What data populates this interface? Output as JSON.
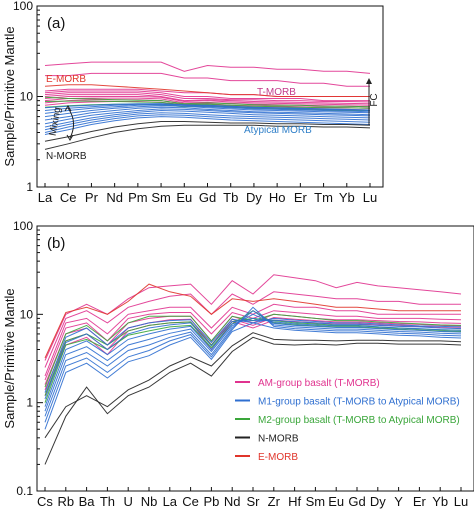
{
  "colors": {
    "am": "#e0338f",
    "m1": "#2f6fd0",
    "m2": "#3aa63a",
    "nmorb": "#222222",
    "emorb": "#e0352b",
    "tmorb_label": "#c23a8a",
    "atypical_label": "#2f7fc8"
  },
  "chart_data": [
    {
      "type": "line",
      "panel_label": "(a)",
      "ylabel": "Sample/Primitive Mantle",
      "yscale": "log",
      "ylim": [
        1,
        100
      ],
      "yticks": [
        "1",
        "10",
        "100"
      ],
      "categories": [
        "La",
        "Ce",
        "Pr",
        "Nd",
        "Pm",
        "Sm",
        "Eu",
        "Gd",
        "Tb",
        "Dy",
        "Ho",
        "Er",
        "Tm",
        "Yb",
        "Lu"
      ],
      "annotations": [
        {
          "text": "E-MORB",
          "color": "#e0352b"
        },
        {
          "text": "T-MORB",
          "color": "#c23a8a"
        },
        {
          "text": "Mixing",
          "color": "#222222"
        },
        {
          "text": "N-MORB",
          "color": "#222222"
        },
        {
          "text": "Atypical MORB",
          "color": "#2f7fc8"
        },
        {
          "text": "FC",
          "color": "#222222"
        }
      ],
      "series": [
        {
          "group": "am",
          "values": [
            22,
            23,
            24,
            24,
            24,
            24,
            19,
            22,
            21,
            21,
            20,
            20,
            19,
            19,
            18
          ]
        },
        {
          "group": "am",
          "values": [
            17,
            17,
            18,
            18,
            18,
            18,
            16,
            16,
            15,
            15,
            15,
            14,
            14,
            13,
            13
          ]
        },
        {
          "group": "am",
          "values": [
            11.5,
            12,
            12,
            12,
            12,
            11.5,
            11,
            11,
            10.5,
            10.5,
            10,
            10,
            10,
            10,
            10
          ]
        },
        {
          "group": "am",
          "values": [
            11,
            11.5,
            11.5,
            11.5,
            11.5,
            11,
            10,
            10,
            9.5,
            9.5,
            9.5,
            9.5,
            9,
            9,
            9
          ]
        },
        {
          "group": "am",
          "values": [
            10.5,
            11,
            11,
            11,
            11,
            10.5,
            9.5,
            9.5,
            9.2,
            9.2,
            9,
            9,
            8.8,
            8.8,
            8.7
          ]
        },
        {
          "group": "am",
          "values": [
            10,
            10.5,
            10.5,
            10.5,
            10.5,
            10,
            9,
            9.2,
            9,
            8.8,
            8.7,
            8.6,
            8.5,
            8.4,
            8.3
          ]
        },
        {
          "group": "am",
          "values": [
            9.5,
            10,
            10,
            10,
            10,
            9.8,
            8.8,
            9,
            8.7,
            8.5,
            8.4,
            8.3,
            8.2,
            8.1,
            8
          ]
        },
        {
          "group": "am",
          "values": [
            9,
            9.5,
            9.6,
            9.6,
            9.6,
            9.4,
            8.5,
            8.6,
            8.4,
            8.2,
            8.1,
            8,
            7.9,
            7.8,
            7.7
          ]
        },
        {
          "group": "am",
          "values": [
            8.5,
            9,
            9.2,
            9.2,
            9.2,
            9,
            8.2,
            8.3,
            8,
            7.9,
            7.8,
            7.7,
            7.6,
            7.5,
            7.4
          ]
        },
        {
          "group": "am",
          "values": [
            8,
            8.5,
            8.7,
            8.8,
            8.8,
            8.6,
            8,
            8,
            7.8,
            7.6,
            7.5,
            7.4,
            7.3,
            7.2,
            7.1
          ]
        },
        {
          "group": "emorb",
          "values": [
            13,
            13.5,
            13.5,
            13,
            12.5,
            12,
            11.5,
            11,
            10.5,
            10.5,
            10,
            10,
            10,
            10,
            10
          ]
        },
        {
          "group": "m2",
          "values": [
            9.8,
            9.5,
            9.4,
            9.2,
            9.1,
            9,
            8.3,
            8.5,
            8.3,
            8.1,
            8,
            8,
            7.8,
            7.8,
            7.7
          ]
        },
        {
          "group": "m2",
          "values": [
            8.8,
            8.9,
            8.9,
            8.8,
            8.7,
            8.6,
            8.1,
            8.2,
            8,
            7.8,
            7.7,
            7.6,
            7.5,
            7.5,
            7.4
          ]
        },
        {
          "group": "m2",
          "values": [
            7.6,
            7.9,
            8.1,
            8.2,
            8.2,
            8.1,
            7.7,
            7.8,
            7.6,
            7.4,
            7.3,
            7.2,
            7.1,
            7,
            7
          ]
        },
        {
          "group": "m1",
          "values": [
            7.5,
            7.8,
            8,
            8.2,
            8.3,
            8.3,
            8,
            8,
            7.8,
            7.6,
            7.5,
            7.4,
            7.3,
            7.2,
            7.1
          ]
        },
        {
          "group": "m1",
          "values": [
            7,
            7.4,
            7.7,
            8,
            8.2,
            8.3,
            8.1,
            7.9,
            7.7,
            7.5,
            7.4,
            7.3,
            7.2,
            7.1,
            7
          ]
        },
        {
          "group": "m1",
          "values": [
            6.5,
            7,
            7.4,
            7.7,
            8,
            8.1,
            8,
            7.7,
            7.5,
            7.3,
            7.2,
            7.1,
            7,
            6.9,
            6.8
          ]
        },
        {
          "group": "m1",
          "values": [
            6,
            6.5,
            7,
            7.4,
            7.7,
            7.9,
            7.8,
            7.5,
            7.3,
            7.1,
            7,
            6.9,
            6.8,
            6.7,
            6.6
          ]
        },
        {
          "group": "m1",
          "values": [
            5.5,
            6,
            6.6,
            7,
            7.4,
            7.6,
            7.5,
            7.2,
            7,
            6.8,
            6.7,
            6.6,
            6.5,
            6.4,
            6.3
          ]
        },
        {
          "group": "m1",
          "values": [
            5,
            5.6,
            6.2,
            6.6,
            7,
            7.3,
            7.2,
            7,
            6.8,
            6.6,
            6.5,
            6.4,
            6.3,
            6.2,
            6.1
          ]
        },
        {
          "group": "m1",
          "values": [
            4.6,
            5.2,
            5.8,
            6.3,
            6.7,
            7,
            6.9,
            6.7,
            6.5,
            6.3,
            6.2,
            6.1,
            6,
            5.9,
            5.8
          ]
        },
        {
          "group": "m1",
          "values": [
            4.3,
            4.9,
            5.5,
            6,
            6.4,
            6.6,
            6.5,
            6.3,
            6.1,
            6,
            5.9,
            5.8,
            5.7,
            5.6,
            5.5
          ]
        },
        {
          "group": "m1",
          "values": [
            4,
            4.6,
            5.2,
            5.7,
            6.1,
            6.3,
            6.2,
            6,
            5.8,
            5.7,
            5.6,
            5.5,
            5.4,
            5.3,
            5.2
          ]
        },
        {
          "group": "m1",
          "values": [
            3.8,
            4.3,
            4.9,
            5.4,
            5.8,
            6,
            5.9,
            5.7,
            5.5,
            5.4,
            5.3,
            5.2,
            5.1,
            5,
            4.9
          ]
        },
        {
          "group": "nmorb",
          "values": [
            3.2,
            3.6,
            4.1,
            4.6,
            5,
            5.3,
            5.3,
            5.2,
            5.1,
            5.1,
            5,
            5,
            4.9,
            4.9,
            4.8
          ]
        },
        {
          "group": "nmorb",
          "values": [
            2.6,
            3,
            3.5,
            4,
            4.4,
            4.7,
            4.8,
            4.8,
            4.8,
            4.8,
            4.7,
            4.7,
            4.6,
            4.6,
            4.5
          ]
        }
      ]
    },
    {
      "type": "line",
      "panel_label": "(b)",
      "ylabel": "Sample/Primitive Mantle",
      "yscale": "log",
      "ylim": [
        0.1,
        100
      ],
      "yticks": [
        "0.1",
        "1",
        "10",
        "100"
      ],
      "categories": [
        "Cs",
        "Rb",
        "Ba",
        "Th",
        "U",
        "Nb",
        "La",
        "Ce",
        "Pb",
        "Nd",
        "Sr",
        "Zr",
        "Hf",
        "Sm",
        "Eu",
        "Gd",
        "Dy",
        "Y",
        "Er",
        "Yb",
        "Lu"
      ],
      "legend": [
        {
          "label": "AM-group basalt (T-MORB)",
          "group": "am"
        },
        {
          "label": "M1-group basalt (T-MORB to Atypical MORB)",
          "group": "m1"
        },
        {
          "label": "M2-group basalt (T-MORB to Atypical MORB)",
          "group": "m2"
        },
        {
          "label": "N-MORB",
          "group": "nmorb"
        },
        {
          "label": "E-MORB",
          "group": "emorb"
        }
      ],
      "series": [
        {
          "group": "am",
          "values": [
            3,
            10,
            13,
            10,
            15,
            20,
            21,
            22,
            13,
            24,
            17,
            28,
            26,
            24,
            20,
            23,
            21,
            20,
            19,
            18,
            17
          ]
        },
        {
          "group": "am",
          "values": [
            2.5,
            9,
            11,
            8,
            12,
            14,
            16,
            17,
            10,
            17,
            13,
            18,
            17,
            16,
            15,
            15,
            14,
            14,
            13,
            13,
            13
          ]
        },
        {
          "group": "am",
          "values": [
            2,
            8,
            9,
            6,
            10,
            11,
            12,
            12,
            7,
            12,
            10,
            13,
            12,
            12,
            11,
            11,
            10,
            10,
            10,
            10,
            10
          ]
        },
        {
          "group": "am",
          "values": [
            1.8,
            7,
            8,
            5,
            9,
            10,
            10.5,
            10.5,
            6,
            10.5,
            9,
            11,
            10.5,
            10,
            9.5,
            9.5,
            9,
            9,
            9,
            8.8,
            8.7
          ]
        },
        {
          "group": "am",
          "values": [
            1.6,
            6,
            7,
            4.5,
            8,
            9,
            9.5,
            9.5,
            5,
            9.5,
            8,
            10,
            9.5,
            9,
            8.7,
            8.7,
            8.5,
            8.3,
            8.2,
            8,
            7.9
          ]
        },
        {
          "group": "am",
          "values": [
            1.4,
            5,
            6,
            4,
            7,
            8,
            8.7,
            8.8,
            4.5,
            8.8,
            7.5,
            9.2,
            8.8,
            8.5,
            8.2,
            8.2,
            8,
            7.8,
            7.7,
            7.5,
            7.4
          ]
        },
        {
          "group": "am",
          "values": [
            1.2,
            4.5,
            5.5,
            3.5,
            6.5,
            7.5,
            8,
            8.2,
            4,
            8.3,
            7,
            8.6,
            8.3,
            8,
            7.8,
            7.8,
            7.6,
            7.4,
            7.3,
            7.1,
            7
          ]
        },
        {
          "group": "emorb",
          "values": [
            3.2,
            10.5,
            12,
            10,
            14,
            22,
            18,
            16,
            10,
            15,
            14,
            15,
            14,
            13,
            12,
            12,
            11.5,
            11,
            11,
            11,
            11
          ]
        },
        {
          "group": "m2",
          "values": [
            1.5,
            6,
            7.5,
            5,
            8,
            9.5,
            9.5,
            9.5,
            5,
            9.5,
            8.5,
            10,
            9.5,
            9,
            8.5,
            8.5,
            8.2,
            8,
            7.8,
            7.6,
            7.5
          ]
        },
        {
          "group": "m2",
          "values": [
            1.2,
            5,
            6,
            4.5,
            6.5,
            7.5,
            8,
            8.2,
            4.5,
            8.3,
            9,
            8.5,
            8,
            7.8,
            7.5,
            7.5,
            7.2,
            7,
            6.8,
            6.7,
            6.6
          ]
        },
        {
          "group": "m2",
          "values": [
            1,
            4.5,
            5.2,
            4,
            5.8,
            6.5,
            7.2,
            7.5,
            4.2,
            7.8,
            11,
            8,
            7.6,
            7.4,
            7.2,
            7.2,
            7,
            6.8,
            6.6,
            6.5,
            6.4
          ]
        },
        {
          "group": "m1",
          "values": [
            1.3,
            5.5,
            7,
            4.5,
            7,
            8,
            8.5,
            8.7,
            4.8,
            8.8,
            8,
            9,
            8.6,
            8.3,
            8,
            8,
            7.8,
            7.6,
            7.4,
            7.3,
            7.2
          ]
        },
        {
          "group": "m1",
          "values": [
            1.1,
            4.8,
            6,
            4,
            6,
            7,
            7.6,
            8,
            4.4,
            8.3,
            8.5,
            8.6,
            8.2,
            8,
            7.7,
            7.7,
            7.5,
            7.3,
            7.2,
            7,
            6.9
          ]
        },
        {
          "group": "m1",
          "values": [
            0.9,
            4,
            5,
            3.5,
            5.2,
            6,
            6.8,
            7.3,
            4,
            7.8,
            9,
            8.2,
            7.8,
            7.6,
            7.4,
            7.4,
            7.2,
            7,
            6.9,
            6.7,
            6.6
          ]
        },
        {
          "group": "m1",
          "values": [
            0.8,
            3.5,
            4.3,
            3,
            4.5,
            5.2,
            6.1,
            6.8,
            3.8,
            7.4,
            10,
            7.9,
            7.5,
            7.3,
            7.1,
            7.1,
            6.9,
            6.7,
            6.6,
            6.4,
            6.3
          ]
        },
        {
          "group": "m1",
          "values": [
            0.7,
            3,
            3.7,
            2.6,
            3.9,
            4.5,
            5.5,
            6.3,
            3.5,
            7,
            11,
            7.6,
            7.2,
            7,
            6.8,
            6.8,
            6.6,
            6.4,
            6.3,
            6.1,
            6
          ]
        },
        {
          "group": "m1",
          "values": [
            0.6,
            2.6,
            3.2,
            2.2,
            3.3,
            3.9,
            5,
            5.9,
            3.3,
            6.7,
            12,
            7.3,
            6.9,
            6.7,
            6.5,
            6.5,
            6.3,
            6.1,
            6,
            5.8,
            5.7
          ]
        },
        {
          "group": "m1",
          "values": [
            0.5,
            2.2,
            2.8,
            1.9,
            2.9,
            3.4,
            4.5,
            5.5,
            3.1,
            6.4,
            8,
            7,
            6.6,
            6.4,
            6.2,
            6.2,
            6,
            5.8,
            5.7,
            5.5,
            5.4
          ]
        },
        {
          "group": "nmorb",
          "values": [
            0.2,
            0.7,
            1.5,
            0.75,
            1.2,
            1.5,
            2.2,
            2.8,
            2,
            3.8,
            5.5,
            4.6,
            4.5,
            4.6,
            4.5,
            4.7,
            4.7,
            4.6,
            4.6,
            4.6,
            4.5
          ]
        },
        {
          "group": "nmorb",
          "values": [
            0.4,
            0.9,
            1.2,
            0.9,
            1.4,
            1.8,
            2.6,
            3.3,
            2.6,
            4.4,
            6.2,
            5.2,
            5.1,
            5.1,
            5,
            5.1,
            5.1,
            5,
            5,
            5,
            4.9
          ]
        }
      ]
    }
  ]
}
